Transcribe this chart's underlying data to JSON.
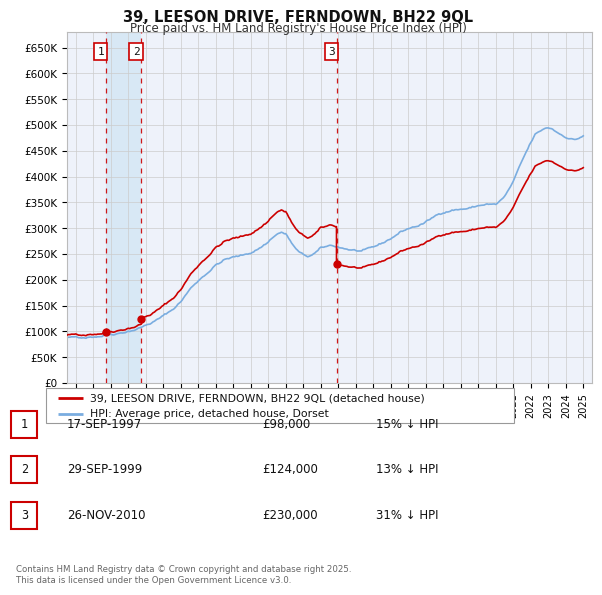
{
  "title": "39, LEESON DRIVE, FERNDOWN, BH22 9QL",
  "subtitle": "Price paid vs. HM Land Registry's House Price Index (HPI)",
  "ylabel_ticks": [
    "£0",
    "£50K",
    "£100K",
    "£150K",
    "£200K",
    "£250K",
    "£300K",
    "£350K",
    "£400K",
    "£450K",
    "£500K",
    "£550K",
    "£600K",
    "£650K"
  ],
  "ytick_values": [
    0,
    50000,
    100000,
    150000,
    200000,
    250000,
    300000,
    350000,
    400000,
    450000,
    500000,
    550000,
    600000,
    650000
  ],
  "ylim": [
    0,
    680000
  ],
  "sale1_date": 1997.72,
  "sale1_price": 98000,
  "sale2_date": 1999.75,
  "sale2_price": 124000,
  "sale3_date": 2010.9,
  "sale3_price": 230000,
  "legend_red": "39, LEESON DRIVE, FERNDOWN, BH22 9QL (detached house)",
  "legend_blue": "HPI: Average price, detached house, Dorset",
  "table_entries": [
    {
      "num": "1",
      "date": "17-SEP-1997",
      "price": "£98,000",
      "note": "15% ↓ HPI"
    },
    {
      "num": "2",
      "date": "29-SEP-1999",
      "price": "£124,000",
      "note": "13% ↓ HPI"
    },
    {
      "num": "3",
      "date": "26-NOV-2010",
      "price": "£230,000",
      "note": "31% ↓ HPI"
    }
  ],
  "footnote": "Contains HM Land Registry data © Crown copyright and database right 2025.\nThis data is licensed under the Open Government Licence v3.0.",
  "red_color": "#cc0000",
  "blue_color": "#7aade0",
  "vline_color": "#cc0000",
  "grid_color": "#cccccc",
  "chart_bg": "#eef2fa",
  "background_color": "#ffffff",
  "shade_color": "#d8e8f5",
  "xlim_left": 1995.5,
  "xlim_right": 2025.5
}
